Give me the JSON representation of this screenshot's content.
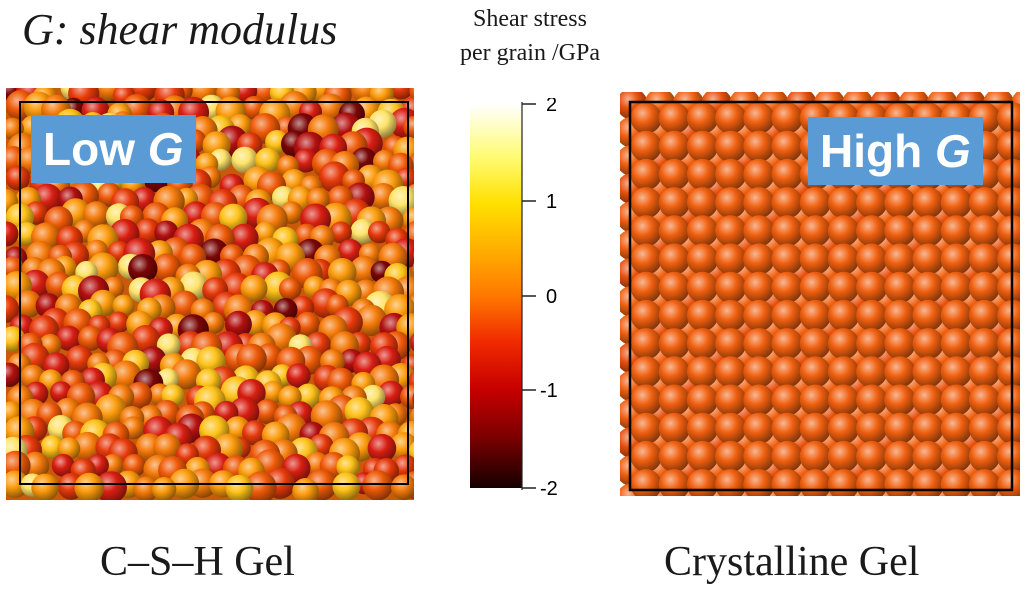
{
  "title": "G: shear modulus",
  "colorbar": {
    "title_line1": "Shear stress",
    "title_line2": "per grain /GPa",
    "ticks": [
      "2",
      "1",
      "0",
      "-1",
      "-2"
    ]
  },
  "left_panel": {
    "badge_main": "Low ",
    "badge_symbol": "G",
    "caption": "C–S–H Gel"
  },
  "right_panel": {
    "badge_main": "High ",
    "badge_symbol": "G",
    "caption": "Crystalline Gel"
  },
  "colors": {
    "badge": "#5b9bd5",
    "crystal_grain": "#f06010",
    "frame": "#000000"
  }
}
